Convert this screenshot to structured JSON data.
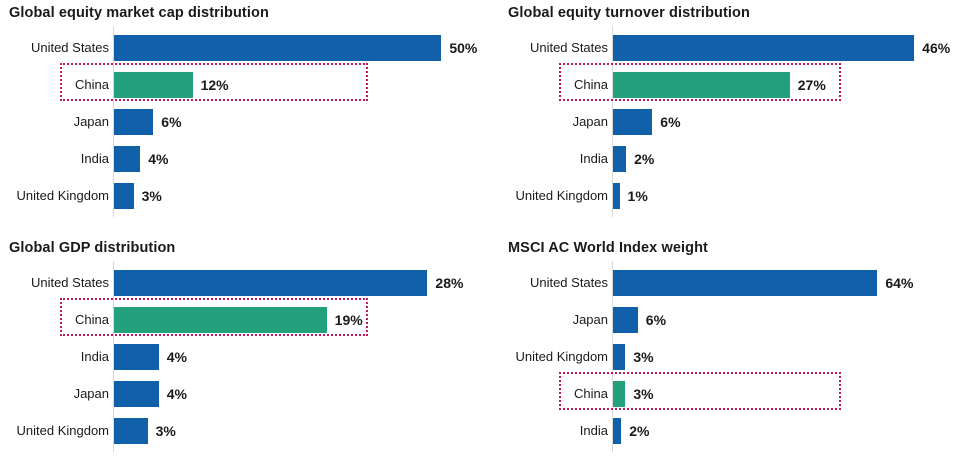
{
  "colors": {
    "bar_default": "#1061a9",
    "bar_highlight": "#23a17c",
    "highlight_box_border": "#c4175c",
    "text": "#1a1a1a",
    "axis_line": "#d9d9d9",
    "background": "#ffffff"
  },
  "chart_data": [
    {
      "type": "bar",
      "orientation": "horizontal",
      "title": "Global equity market cap distribution",
      "xlabel": "",
      "ylabel": "",
      "xlim": [
        0,
        53
      ],
      "grid": false,
      "legend": "none",
      "bars": [
        {
          "label": "United States",
          "value": 50,
          "value_label": "50%",
          "highlighted": false
        },
        {
          "label": "China",
          "value": 12,
          "value_label": "12%",
          "highlighted": true
        },
        {
          "label": "Japan",
          "value": 6,
          "value_label": "6%",
          "highlighted": false
        },
        {
          "label": "India",
          "value": 4,
          "value_label": "4%",
          "highlighted": false
        },
        {
          "label": "United Kingdom",
          "value": 3,
          "value_label": "3%",
          "highlighted": false
        }
      ]
    },
    {
      "type": "bar",
      "orientation": "horizontal",
      "title": "Global equity turnover distribution",
      "xlabel": "",
      "ylabel": "",
      "xlim": [
        0,
        53
      ],
      "grid": false,
      "legend": "none",
      "bars": [
        {
          "label": "United States",
          "value": 46,
          "value_label": "46%",
          "highlighted": false
        },
        {
          "label": "China",
          "value": 27,
          "value_label": "27%",
          "highlighted": true
        },
        {
          "label": "Japan",
          "value": 6,
          "value_label": "6%",
          "highlighted": false
        },
        {
          "label": "India",
          "value": 2,
          "value_label": "2%",
          "highlighted": false
        },
        {
          "label": "United Kingdom",
          "value": 1,
          "value_label": "1%",
          "highlighted": false
        }
      ]
    },
    {
      "type": "bar",
      "orientation": "horizontal",
      "title": "Global GDP distribution",
      "xlabel": "",
      "ylabel": "",
      "xlim": [
        0,
        31
      ],
      "grid": false,
      "legend": "none",
      "bars": [
        {
          "label": "United States",
          "value": 28,
          "value_label": "28%",
          "highlighted": false
        },
        {
          "label": "China",
          "value": 19,
          "value_label": "19%",
          "highlighted": true
        },
        {
          "label": "India",
          "value": 4,
          "value_label": "4%",
          "highlighted": false
        },
        {
          "label": "Japan",
          "value": 4,
          "value_label": "4%",
          "highlighted": false
        },
        {
          "label": "United Kingdom",
          "value": 3,
          "value_label": "3%",
          "highlighted": false
        }
      ]
    },
    {
      "type": "bar",
      "orientation": "horizontal",
      "title": "MSCI AC World Index weight",
      "xlabel": "",
      "ylabel": "",
      "xlim": [
        0,
        84
      ],
      "grid": false,
      "legend": "none",
      "bars": [
        {
          "label": "United States",
          "value": 64,
          "value_label": "64%",
          "highlighted": false
        },
        {
          "label": "Japan",
          "value": 6,
          "value_label": "6%",
          "highlighted": false
        },
        {
          "label": "United Kingdom",
          "value": 3,
          "value_label": "3%",
          "highlighted": false
        },
        {
          "label": "China",
          "value": 3,
          "value_label": "3%",
          "highlighted": true
        },
        {
          "label": "India",
          "value": 2,
          "value_label": "2%",
          "highlighted": false
        }
      ]
    }
  ]
}
